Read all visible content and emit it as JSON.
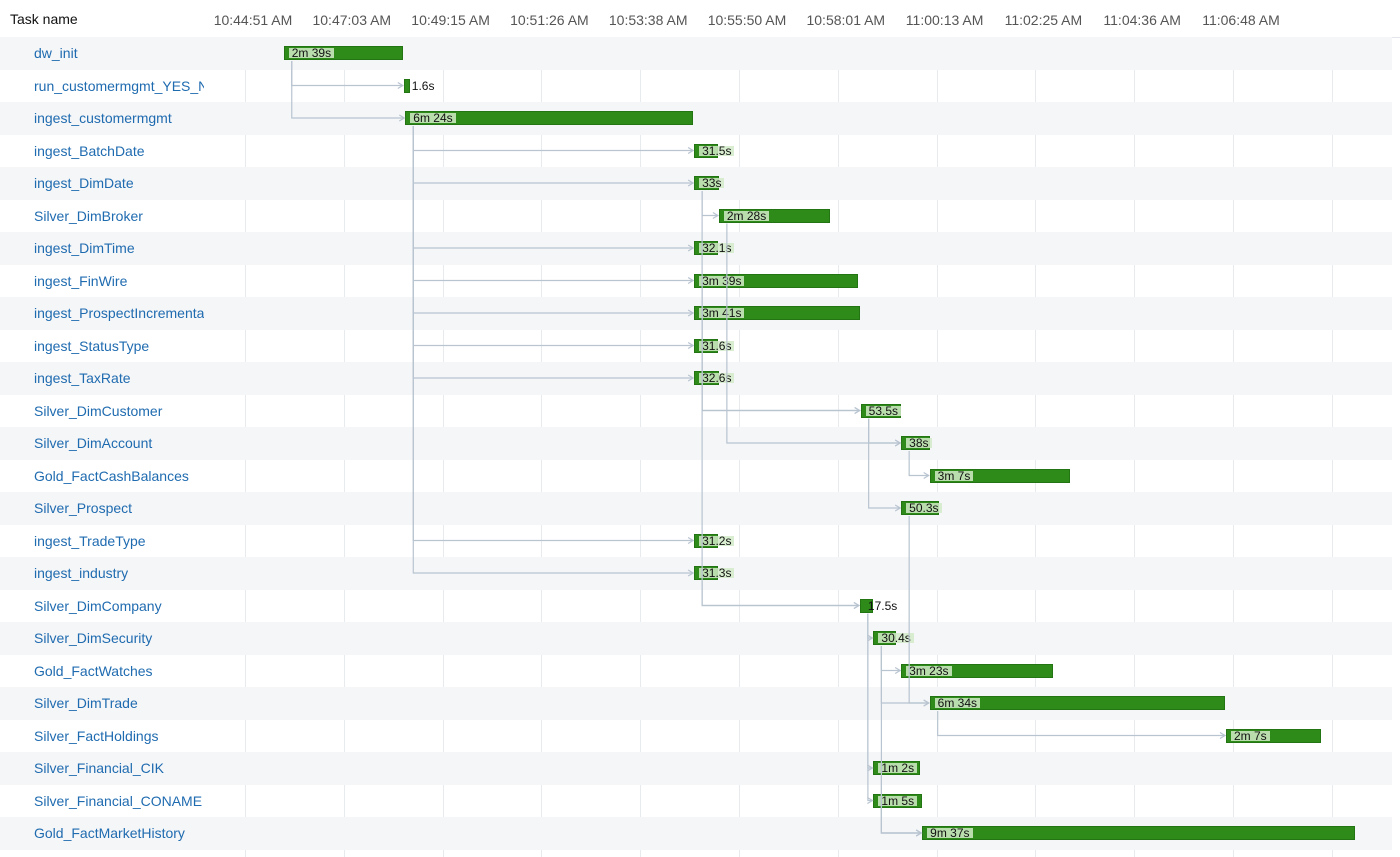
{
  "header": {
    "task_name_label": "Task name",
    "time_ticks": [
      "10:44:51 AM",
      "10:47:03 AM",
      "10:49:15 AM",
      "10:51:26 AM",
      "10:53:38 AM",
      "10:55:50 AM",
      "10:58:01 AM",
      "11:00:13 AM",
      "11:02:25 AM",
      "11:04:36 AM",
      "11:06:48 AM"
    ]
  },
  "colors": {
    "bar": "#2e8b1a",
    "bar_border": "#237513",
    "link": "#1f6bb0",
    "dependency_line": "#b8c4d0"
  },
  "tasks": [
    {
      "name": "dw_init",
      "duration": "2m 39s",
      "start": "10:45:32"
    },
    {
      "name": "run_customermgmt_YES_NO",
      "duration": "1.6s",
      "start": "10:48:12"
    },
    {
      "name": "ingest_customermgmt",
      "duration": "6m 24s",
      "start": "10:48:14"
    },
    {
      "name": "ingest_BatchDate",
      "duration": "31.5s",
      "start": "10:54:39"
    },
    {
      "name": "ingest_DimDate",
      "duration": "33s",
      "start": "10:54:39"
    },
    {
      "name": "Silver_DimBroker",
      "duration": "2m 28s",
      "start": "10:55:12"
    },
    {
      "name": "ingest_DimTime",
      "duration": "32.1s",
      "start": "10:54:39"
    },
    {
      "name": "ingest_FinWire",
      "duration": "3m 39s",
      "start": "10:54:39"
    },
    {
      "name": "ingest_ProspectIncremental",
      "duration": "3m 41s",
      "start": "10:54:39"
    },
    {
      "name": "ingest_StatusType",
      "duration": "31.6s",
      "start": "10:54:39"
    },
    {
      "name": "ingest_TaxRate",
      "duration": "32.6s",
      "start": "10:54:39"
    },
    {
      "name": "Silver_DimCustomer",
      "duration": "53.5s",
      "start": "10:58:21"
    },
    {
      "name": "Silver_DimAccount",
      "duration": "38s",
      "start": "10:59:15"
    },
    {
      "name": "Gold_FactCashBalances",
      "duration": "3m 7s",
      "start": "10:59:53"
    },
    {
      "name": "Silver_Prospect",
      "duration": "50.3s",
      "start": "10:59:15"
    },
    {
      "name": "ingest_TradeType",
      "duration": "31.2s",
      "start": "10:54:39"
    },
    {
      "name": "ingest_industry",
      "duration": "31.3s",
      "start": "10:54:39"
    },
    {
      "name": "Silver_DimCompany",
      "duration": "17.5s",
      "start": "10:58:20"
    },
    {
      "name": "Silver_DimSecurity",
      "duration": "30.4s",
      "start": "10:58:38"
    },
    {
      "name": "Gold_FactWatches",
      "duration": "3m 23s",
      "start": "10:59:15"
    },
    {
      "name": "Silver_DimTrade",
      "duration": "6m 34s",
      "start": "10:59:53"
    },
    {
      "name": "Silver_FactHoldings",
      "duration": "2m 7s",
      "start": "11:06:28"
    },
    {
      "name": "Silver_Financial_CIK",
      "duration": "1m 2s",
      "start": "10:58:38"
    },
    {
      "name": "Silver_Financial_CONAME",
      "duration": "1m 5s",
      "start": "10:58:38"
    },
    {
      "name": "Gold_FactMarketHistory",
      "duration": "9m 37s",
      "start": "10:59:43"
    }
  ],
  "dependencies": [
    [
      0,
      1
    ],
    [
      0,
      2
    ],
    [
      2,
      3
    ],
    [
      2,
      4
    ],
    [
      2,
      6
    ],
    [
      2,
      7
    ],
    [
      2,
      8
    ],
    [
      2,
      9
    ],
    [
      2,
      10
    ],
    [
      2,
      15
    ],
    [
      2,
      16
    ],
    [
      4,
      5
    ],
    [
      4,
      11
    ],
    [
      16,
      17
    ],
    [
      5,
      12
    ],
    [
      11,
      12
    ],
    [
      8,
      11
    ],
    [
      12,
      13
    ],
    [
      11,
      14
    ],
    [
      7,
      17
    ],
    [
      17,
      18
    ],
    [
      17,
      22
    ],
    [
      17,
      23
    ],
    [
      18,
      19
    ],
    [
      18,
      20
    ],
    [
      14,
      20
    ],
    [
      20,
      21
    ],
    [
      22,
      24
    ],
    [
      23,
      24
    ],
    [
      18,
      24
    ]
  ]
}
